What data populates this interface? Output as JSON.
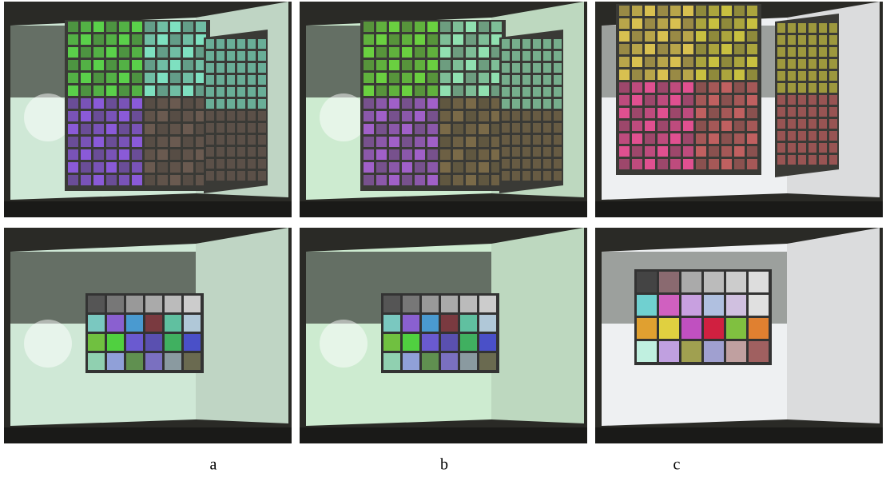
{
  "captions": [
    "a",
    "b",
    "c"
  ]
}
